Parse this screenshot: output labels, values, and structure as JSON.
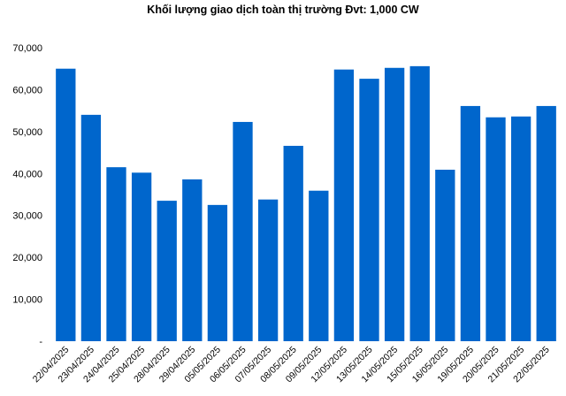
{
  "chart_data": {
    "type": "bar",
    "title": "Khối lượng giao dịch toàn thị trường Đvt: 1,000 CW",
    "xlabel": "",
    "ylabel": "",
    "ylim": [
      0,
      70000
    ],
    "yticks": [
      0,
      10000,
      20000,
      30000,
      40000,
      50000,
      60000,
      70000
    ],
    "ytick_labels": [
      "-",
      "10,000",
      "20,000",
      "30,000",
      "40,000",
      "50,000",
      "60,000",
      "70,000"
    ],
    "grid": false,
    "bar_color": "#0066CC",
    "categories": [
      "22/04/2025",
      "23/04/2025",
      "24/04/2025",
      "25/04/2025",
      "28/04/2025",
      "29/04/2025",
      "05/05/2025",
      "06/05/2025",
      "07/05/2025",
      "08/05/2025",
      "09/05/2025",
      "12/05/2025",
      "13/05/2025",
      "14/05/2025",
      "15/05/2025",
      "16/05/2025",
      "19/05/2025",
      "20/05/2025",
      "21/05/2025",
      "22/05/2025"
    ],
    "values": [
      65000,
      54000,
      41500,
      40200,
      33500,
      38600,
      32500,
      52300,
      33800,
      46600,
      35900,
      64800,
      62600,
      65200,
      65600,
      40900,
      56100,
      53400,
      53600,
      56100
    ]
  }
}
